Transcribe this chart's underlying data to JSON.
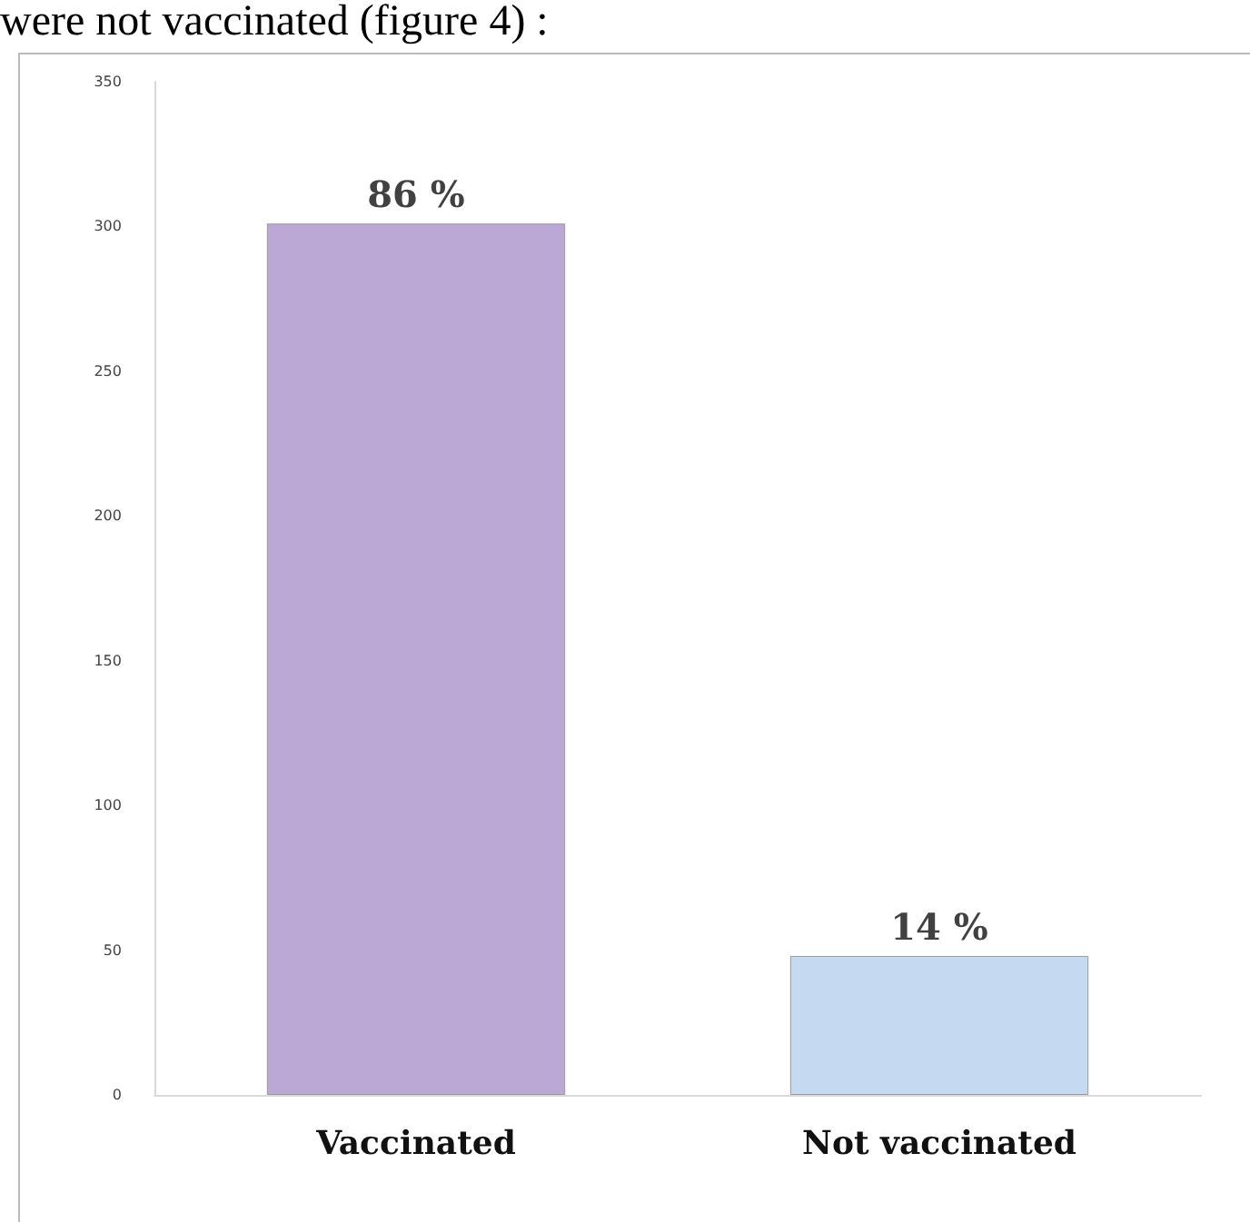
{
  "chart_data": {
    "type": "bar",
    "annotations": [
      "were not vaccinated (figure 4) :",
      {
        "text": "86 %",
        "x": "Vaccinated",
        "y": 301
      },
      {
        "text": "14 %",
        "x": "Not vaccinated",
        "y": 48
      }
    ],
    "categories": [
      "Vaccinated",
      "Not vaccinated"
    ],
    "values": [
      301,
      48
    ],
    "colors": [
      "#bca8d4",
      "#c5d9f0"
    ],
    "ylim": [
      0,
      350
    ],
    "yticks": [
      0,
      50,
      100,
      150,
      200,
      250,
      300,
      350
    ],
    "grid": false
  }
}
